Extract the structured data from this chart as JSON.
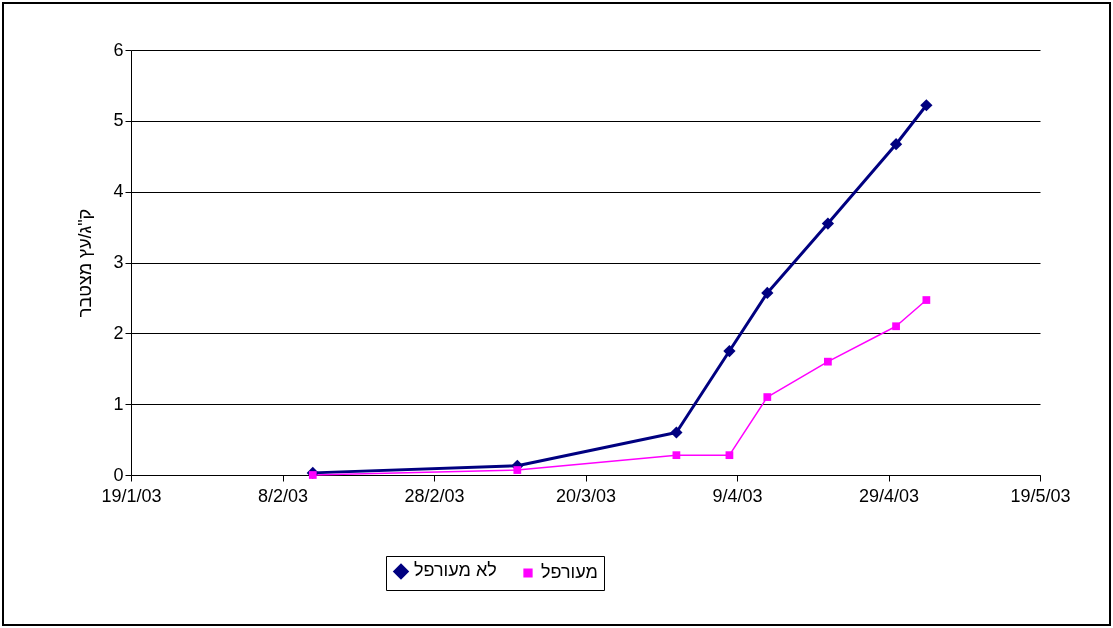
{
  "chart_data": {
    "type": "line",
    "ylabel": "ק\"ג/עץ מצטבר",
    "x": [
      "2003-02-12",
      "2003-03-11",
      "2003-04-01",
      "2003-04-08",
      "2003-04-13",
      "2003-04-21",
      "2003-04-30",
      "2003-05-04"
    ],
    "series": [
      {
        "name": "לא מעורפל",
        "color": "#000080",
        "marker": "diamond",
        "values": [
          0.03,
          0.13,
          0.6,
          1.75,
          2.57,
          3.55,
          4.67,
          5.22
        ]
      },
      {
        "name": "מעורפל",
        "color": "#ff00ff",
        "marker": "square",
        "values": [
          0.0,
          0.07,
          0.28,
          0.28,
          1.1,
          1.6,
          2.1,
          2.47
        ]
      }
    ],
    "xlim": [
      "2003-01-19",
      "2003-05-19"
    ],
    "xticks": [
      {
        "value": "2003-01-19",
        "label": "19/1/03"
      },
      {
        "value": "2003-02-08",
        "label": "8/2/03"
      },
      {
        "value": "2003-02-28",
        "label": "28/2/03"
      },
      {
        "value": "2003-03-20",
        "label": "20/3/03"
      },
      {
        "value": "2003-04-09",
        "label": "9/4/03"
      },
      {
        "value": "2003-04-29",
        "label": "29/4/03"
      },
      {
        "value": "2003-05-19",
        "label": "19/5/03"
      }
    ],
    "ylim": [
      0,
      6
    ],
    "yticks": [
      0,
      1,
      2,
      3,
      4,
      5,
      6
    ],
    "grid": "y",
    "legend": "bottom",
    "line_style": "solid"
  }
}
